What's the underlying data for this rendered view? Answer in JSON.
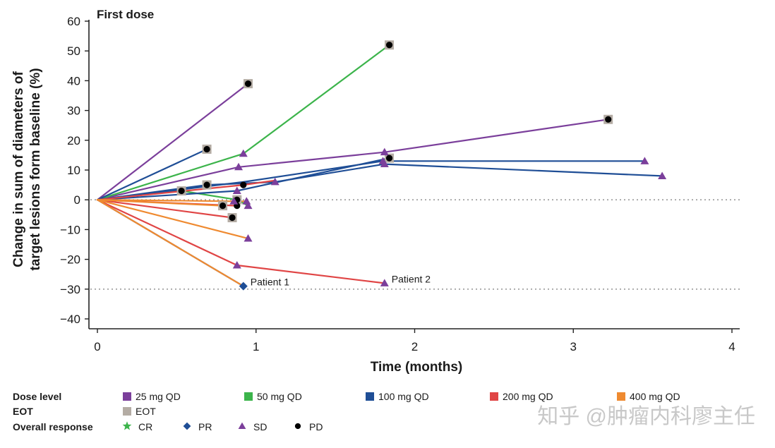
{
  "chart_data": {
    "type": "line",
    "title": "First dose",
    "xlabel": "Time (months)",
    "ylabel_line1": "Change in sum of diameters of",
    "ylabel_line2": "target lesions form baseline (%)",
    "xlim": [
      0,
      4
    ],
    "ylim": [
      -40,
      60
    ],
    "xticks": [
      "0",
      "1",
      "2",
      "3",
      "4"
    ],
    "yticks": [
      "60",
      "50",
      "40",
      "30",
      "20",
      "10",
      "0",
      "−10",
      "−20",
      "−30",
      "−40"
    ],
    "reference_lines": [
      0,
      -30
    ],
    "dose_colors": {
      "25 mg QD": "#7b3f9b",
      "50 mg QD": "#3cb44b",
      "100 mg QD": "#1f4e96",
      "200 mg QD": "#e04545",
      "400 mg QD": "#ef8a30"
    },
    "eot_color": "#b4aca4",
    "series": [
      {
        "dose": "25 mg QD",
        "points": [
          [
            0,
            0
          ],
          [
            0.95,
            39
          ]
        ],
        "eot": [
          [
            0.95,
            39
          ]
        ],
        "response": [
          [
            "PD",
            0.95,
            39
          ]
        ]
      },
      {
        "dose": "25 mg QD",
        "points": [
          [
            0,
            0
          ],
          [
            0.89,
            11
          ],
          [
            1.81,
            16
          ],
          [
            3.22,
            27
          ]
        ],
        "eot": [
          [
            3.22,
            27
          ]
        ],
        "response": [
          [
            "SD",
            0.89,
            11
          ],
          [
            "SD",
            1.81,
            16
          ],
          [
            "PD",
            3.22,
            27
          ]
        ]
      },
      {
        "dose": "50 mg QD",
        "points": [
          [
            0,
            0
          ],
          [
            0.92,
            15.5
          ],
          [
            1.84,
            52
          ]
        ],
        "eot": [
          [
            1.84,
            52
          ]
        ],
        "response": [
          [
            "SD",
            0.92,
            15.5
          ],
          [
            "PD",
            1.84,
            52
          ]
        ]
      },
      {
        "dose": "50 mg QD",
        "points": [
          [
            0,
            0
          ],
          [
            0.53,
            3
          ],
          [
            0.88,
            0
          ],
          [
            0.95,
            -2
          ]
        ],
        "eot": [
          [
            0.53,
            3
          ]
        ],
        "response": [
          [
            "PD",
            0.53,
            3
          ],
          [
            "SD",
            0.95,
            -2
          ]
        ]
      },
      {
        "dose": "100 mg QD",
        "points": [
          [
            0,
            0
          ],
          [
            0.69,
            17
          ]
        ],
        "eot": [
          [
            0.69,
            17
          ]
        ],
        "response": [
          [
            "PD",
            0.69,
            17
          ]
        ]
      },
      {
        "dose": "100 mg QD",
        "points": [
          [
            0,
            0
          ],
          [
            0.92,
            6
          ],
          [
            1.8,
            13
          ],
          [
            3.45,
            13
          ]
        ],
        "eot": [],
        "response": [
          [
            "SD",
            1.8,
            13
          ],
          [
            "SD",
            3.45,
            13
          ]
        ]
      },
      {
        "dose": "100 mg QD",
        "points": [
          [
            0,
            0
          ],
          [
            0.69,
            5
          ],
          [
            1.12,
            6
          ],
          [
            1.81,
            12
          ],
          [
            3.56,
            8
          ]
        ],
        "eot": [
          [
            0.69,
            5
          ]
        ],
        "response": [
          [
            "PD",
            0.69,
            5
          ],
          [
            "SD",
            1.12,
            6
          ],
          [
            "SD",
            1.81,
            12
          ],
          [
            "SD",
            3.56,
            8
          ]
        ]
      },
      {
        "dose": "100 mg QD",
        "points": [
          [
            0,
            0
          ],
          [
            0.88,
            3
          ],
          [
            1.84,
            14
          ]
        ],
        "eot": [
          [
            1.84,
            14
          ]
        ],
        "response": [
          [
            "SD",
            0.88,
            3
          ],
          [
            "PD",
            1.84,
            14
          ]
        ]
      },
      {
        "dose": "100 mg QD",
        "points": [
          [
            0,
            0
          ],
          [
            0.92,
            -29
          ]
        ],
        "eot": [],
        "response": [
          [
            "PR",
            0.92,
            -29
          ]
        ]
      },
      {
        "dose": "200 mg QD",
        "points": [
          [
            0,
            0
          ],
          [
            0.92,
            5
          ],
          [
            1.12,
            6.5
          ]
        ],
        "eot": [],
        "response": [
          [
            "PD",
            0.92,
            5
          ]
        ]
      },
      {
        "dose": "200 mg QD",
        "points": [
          [
            0,
            0
          ],
          [
            0.85,
            -6
          ]
        ],
        "eot": [
          [
            0.85,
            -6
          ]
        ],
        "response": [
          [
            "PD",
            0.85,
            -6
          ]
        ]
      },
      {
        "dose": "200 mg QD",
        "points": [
          [
            0,
            0
          ],
          [
            0.88,
            -2
          ]
        ],
        "eot": [],
        "response": [
          [
            "PD",
            0.88,
            -2
          ]
        ]
      },
      {
        "dose": "200 mg QD",
        "points": [
          [
            0,
            0
          ],
          [
            0.88,
            -22
          ],
          [
            1.81,
            -28
          ]
        ],
        "eot": [],
        "response": [
          [
            "SD",
            0.88,
            -22
          ],
          [
            "SD",
            1.81,
            -28
          ]
        ]
      },
      {
        "dose": "400 mg QD",
        "points": [
          [
            0,
            0
          ],
          [
            0.86,
            -0.5
          ],
          [
            0.94,
            -0.5
          ]
        ],
        "eot": [
          [
            0.88,
            0
          ]
        ],
        "response": [
          [
            "PD",
            0.88,
            0
          ],
          [
            "SD",
            0.86,
            -0.5
          ],
          [
            "SD",
            0.94,
            -0.5
          ]
        ]
      },
      {
        "dose": "400 mg QD",
        "points": [
          [
            0,
            0
          ],
          [
            0.79,
            -2
          ]
        ],
        "eot": [
          [
            0.79,
            -2
          ]
        ],
        "response": [
          [
            "PD",
            0.79,
            -2
          ]
        ]
      },
      {
        "dose": "400 mg QD",
        "points": [
          [
            0,
            0
          ],
          [
            0.95,
            -13
          ]
        ],
        "eot": [],
        "response": [
          [
            "SD",
            0.95,
            -13
          ]
        ]
      },
      {
        "dose": "400 mg QD",
        "points": [
          [
            0,
            0
          ],
          [
            0.92,
            -29
          ]
        ],
        "eot": [],
        "response": []
      }
    ],
    "annotations": [
      {
        "text": "Patient 1",
        "x": 0.92,
        "y": -29
      },
      {
        "text": "Patient 2",
        "x": 1.81,
        "y": -28
      }
    ]
  },
  "legend": {
    "dose_header": "Dose level",
    "dose_items": [
      "25 mg QD",
      "50 mg QD",
      "100 mg QD",
      "200 mg QD",
      "400 mg QD"
    ],
    "eot_header": "EOT",
    "eot_label": "EOT",
    "response_header": "Overall response",
    "response_items": [
      {
        "code": "CR",
        "label": "CR",
        "symbol": "star",
        "color": "#3cb44b"
      },
      {
        "code": "PR",
        "label": "PR",
        "symbol": "diamond",
        "color": "#1f4e96"
      },
      {
        "code": "SD",
        "label": "SD",
        "symbol": "triangle",
        "color": "#7b3f9b"
      },
      {
        "code": "PD",
        "label": "PD",
        "symbol": "circle",
        "color": "#000000"
      }
    ]
  },
  "watermark": "知乎 @肿瘤内科廖主任"
}
